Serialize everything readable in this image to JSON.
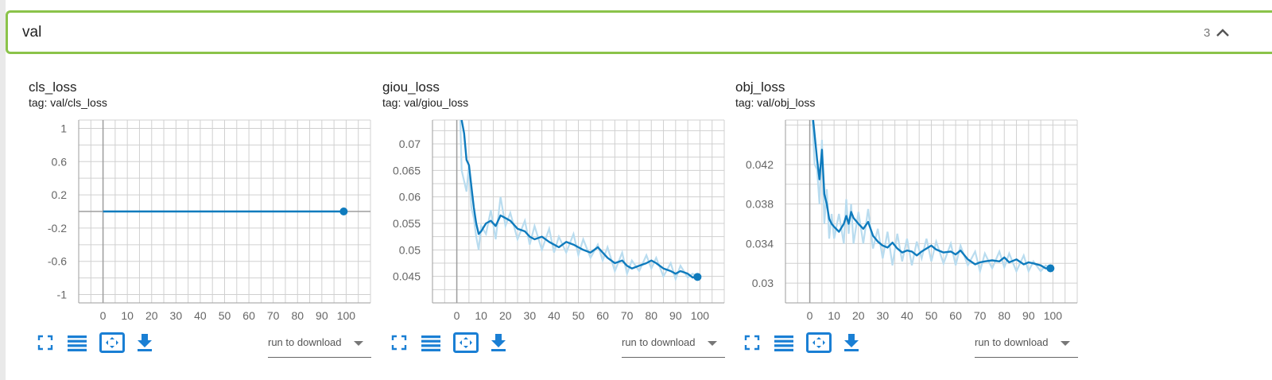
{
  "group": {
    "title": "val",
    "count": "3"
  },
  "colors": {
    "accent": "#8bc34a",
    "series": "#0f7bbd",
    "series_light": "#b9dcef",
    "icon": "#1a7fd4",
    "grid": "#d0d0d0",
    "axis": "#9e9e9e"
  },
  "icons": {
    "fit": "fullscreen-icon",
    "log": "toggle-log-scale-icon",
    "domain": "fit-domain-icon",
    "download": "download-icon",
    "collapse": "chevron-up-icon"
  },
  "cards": [
    {
      "title": "cls_loss",
      "tag": "tag: val/cls_loss",
      "download_label": "run to download",
      "chart_data": {
        "type": "line",
        "xlim": [
          -10,
          110
        ],
        "ylim": [
          -1.1,
          1.1
        ],
        "xticks": [
          0,
          10,
          20,
          30,
          40,
          50,
          60,
          70,
          80,
          90,
          100
        ],
        "yticks": [
          1,
          0.6,
          0.2,
          -0.2,
          -0.6,
          -1
        ],
        "ytick_labels": [
          "1",
          "0.6",
          "0.2",
          "-0.2",
          "-0.6",
          "-1"
        ],
        "grid": true,
        "series": [
          {
            "x": [
              0,
              99
            ],
            "y": [
              0,
              0
            ],
            "raw": [
              [
                0,
                0
              ],
              [
                99,
                0
              ]
            ]
          }
        ]
      }
    },
    {
      "title": "giou_loss",
      "tag": "tag: val/giou_loss",
      "download_label": "run to download",
      "chart_data": {
        "type": "line",
        "xlim": [
          -10,
          110
        ],
        "ylim": [
          0.04,
          0.0745
        ],
        "xticks": [
          0,
          10,
          20,
          30,
          40,
          50,
          60,
          70,
          80,
          90,
          100
        ],
        "yticks": [
          0.07,
          0.065,
          0.06,
          0.055,
          0.05,
          0.045
        ],
        "ytick_labels": [
          "0.07",
          "0.065",
          "0.06",
          "0.055",
          "0.05",
          "0.045"
        ],
        "grid": true,
        "series": [
          {
            "x": [
              1,
              2,
              3,
              4,
              5,
              6,
              7,
              8,
              9,
              10,
              12,
              14,
              16,
              18,
              20,
              22,
              25,
              28,
              30,
              32,
              35,
              38,
              40,
              42,
              45,
              48,
              50,
              52,
              55,
              58,
              60,
              62,
              65,
              68,
              70,
              72,
              75,
              78,
              80,
              82,
              85,
              88,
              90,
              92,
              95,
              97,
              99
            ],
            "y": [
              0.08,
              0.0745,
              0.072,
              0.067,
              0.066,
              0.062,
              0.058,
              0.055,
              0.053,
              0.0535,
              0.055,
              0.0555,
              0.0545,
              0.0565,
              0.056,
              0.0555,
              0.054,
              0.0535,
              0.0525,
              0.052,
              0.0525,
              0.0515,
              0.051,
              0.0505,
              0.0515,
              0.051,
              0.0505,
              0.05,
              0.0495,
              0.0505,
              0.0495,
              0.0485,
              0.0475,
              0.048,
              0.047,
              0.0465,
              0.047,
              0.0475,
              0.048,
              0.0475,
              0.0465,
              0.046,
              0.0455,
              0.046,
              0.0455,
              0.0448,
              0.0449
            ],
            "raw": [
              [
                1,
                0.082
              ],
              [
                2,
                0.065
              ],
              [
                3,
                0.063
              ],
              [
                4,
                0.061
              ],
              [
                5,
                0.066
              ],
              [
                6,
                0.058
              ],
              [
                7,
                0.056
              ],
              [
                8,
                0.0525
              ],
              [
                9,
                0.05
              ],
              [
                10,
                0.0545
              ],
              [
                12,
                0.053
              ],
              [
                14,
                0.0575
              ],
              [
                16,
                0.052
              ],
              [
                18,
                0.06
              ],
              [
                20,
                0.0545
              ],
              [
                22,
                0.057
              ],
              [
                25,
                0.052
              ],
              [
                28,
                0.0555
              ],
              [
                30,
                0.051
              ],
              [
                32,
                0.0545
              ],
              [
                35,
                0.05
              ],
              [
                38,
                0.054
              ],
              [
                40,
                0.0495
              ],
              [
                42,
                0.0525
              ],
              [
                45,
                0.0495
              ],
              [
                48,
                0.053
              ],
              [
                50,
                0.049
              ],
              [
                52,
                0.052
              ],
              [
                55,
                0.0485
              ],
              [
                58,
                0.051
              ],
              [
                60,
                0.048
              ],
              [
                62,
                0.0505
              ],
              [
                65,
                0.046
              ],
              [
                68,
                0.0495
              ],
              [
                70,
                0.0455
              ],
              [
                72,
                0.048
              ],
              [
                75,
                0.046
              ],
              [
                78,
                0.049
              ],
              [
                80,
                0.0465
              ],
              [
                82,
                0.0485
              ],
              [
                85,
                0.045
              ],
              [
                88,
                0.0475
              ],
              [
                90,
                0.0445
              ],
              [
                92,
                0.047
              ],
              [
                95,
                0.0448
              ],
              [
                97,
                0.0455
              ],
              [
                99,
                0.0449
              ]
            ]
          }
        ]
      }
    },
    {
      "title": "obj_loss",
      "tag": "tag: val/obj_loss",
      "download_label": "run to download",
      "chart_data": {
        "type": "line",
        "xlim": [
          -10,
          110
        ],
        "ylim": [
          0.028,
          0.0465
        ],
        "xticks": [
          0,
          10,
          20,
          30,
          40,
          50,
          60,
          70,
          80,
          90,
          100
        ],
        "yticks": [
          0.042,
          0.038,
          0.034,
          0.03
        ],
        "ytick_labels": [
          "0.042",
          "0.038",
          "0.034",
          "0.03"
        ],
        "grid": true,
        "series": [
          {
            "x": [
              1,
              2,
              3,
              4,
              5,
              6,
              7,
              8,
              9,
              10,
              12,
              14,
              15,
              16,
              17,
              18,
              20,
              22,
              24,
              26,
              28,
              30,
              32,
              34,
              36,
              38,
              40,
              42,
              44,
              46,
              48,
              50,
              52,
              55,
              58,
              60,
              62,
              65,
              68,
              70,
              72,
              75,
              78,
              80,
              82,
              85,
              88,
              90,
              92,
              95,
              97,
              99
            ],
            "y": [
              0.0475,
              0.045,
              0.0425,
              0.0405,
              0.0435,
              0.039,
              0.038,
              0.0365,
              0.036,
              0.0357,
              0.0352,
              0.036,
              0.0368,
              0.036,
              0.0372,
              0.0366,
              0.036,
              0.0355,
              0.0362,
              0.0348,
              0.0342,
              0.0338,
              0.0336,
              0.0341,
              0.0335,
              0.0331,
              0.0333,
              0.0332,
              0.0328,
              0.0332,
              0.0335,
              0.0338,
              0.0334,
              0.0331,
              0.0332,
              0.0329,
              0.0333,
              0.0324,
              0.0319,
              0.0321,
              0.0322,
              0.0323,
              0.0322,
              0.0326,
              0.0321,
              0.0324,
              0.0319,
              0.0321,
              0.032,
              0.0318,
              0.0315,
              0.0315
            ],
            "raw": [
              [
                1,
                0.047
              ],
              [
                2,
                0.042
              ],
              [
                3,
                0.0415
              ],
              [
                4,
                0.038
              ],
              [
                5,
                0.0445
              ],
              [
                6,
                0.036
              ],
              [
                7,
                0.0395
              ],
              [
                8,
                0.0345
              ],
              [
                9,
                0.037
              ],
              [
                10,
                0.0345
              ],
              [
                12,
                0.037
              ],
              [
                14,
                0.034
              ],
              [
                15,
                0.0385
              ],
              [
                16,
                0.035
              ],
              [
                17,
                0.038
              ],
              [
                18,
                0.034
              ],
              [
                20,
                0.0372
              ],
              [
                22,
                0.034
              ],
              [
                24,
                0.0375
              ],
              [
                26,
                0.0335
              ],
              [
                28,
                0.0355
              ],
              [
                30,
                0.0325
              ],
              [
                32,
                0.0352
              ],
              [
                34,
                0.0318
              ],
              [
                36,
                0.035
              ],
              [
                38,
                0.0322
              ],
              [
                40,
                0.0345
              ],
              [
                42,
                0.0318
              ],
              [
                44,
                0.0342
              ],
              [
                46,
                0.0325
              ],
              [
                48,
                0.0345
              ],
              [
                50,
                0.0322
              ],
              [
                52,
                0.0342
              ],
              [
                55,
                0.032
              ],
              [
                58,
                0.034
              ],
              [
                60,
                0.0318
              ],
              [
                62,
                0.0338
              ],
              [
                65,
                0.0318
              ],
              [
                68,
                0.0332
              ],
              [
                70,
                0.0312
              ],
              [
                72,
                0.033
              ],
              [
                75,
                0.0315
              ],
              [
                78,
                0.0332
              ],
              [
                80,
                0.0316
              ],
              [
                82,
                0.033
              ],
              [
                85,
                0.0312
              ],
              [
                88,
                0.0328
              ],
              [
                90,
                0.0312
              ],
              [
                92,
                0.0322
              ],
              [
                95,
                0.0312
              ],
              [
                97,
                0.0318
              ],
              [
                99,
                0.0315
              ]
            ]
          }
        ]
      }
    }
  ]
}
